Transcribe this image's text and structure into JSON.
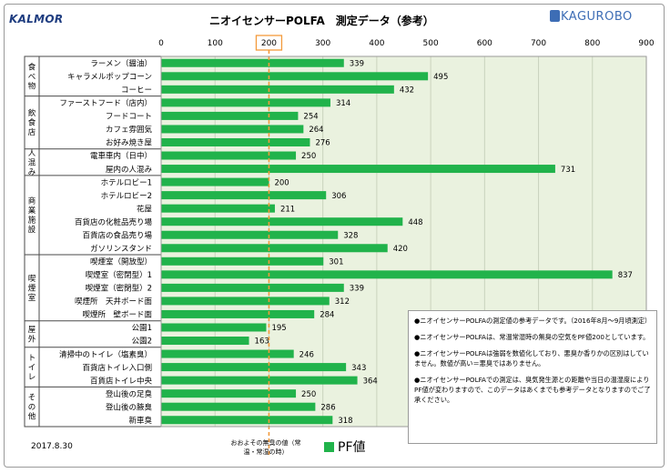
{
  "header": {
    "brand_left": "KALMOR",
    "title": "ニオイセンサーPOLFA　測定データ（参考）",
    "brand_right": "KAGUROBO"
  },
  "footer": {
    "date": "2017.8.30",
    "reference_note": "おおよその無臭の値（常温・常湿の時）",
    "legend_label": "PF値"
  },
  "notes": [
    "●ニオイセンサーPOLFAの測定値の参考データです。（2016年8月〜9月頃測定）",
    "●ニオイセンサーPOLFAは、常温常湿時の無臭の空気をPF値200としています。",
    "●ニオイセンサーPOLFAは強弱を数値化しており、悪臭か香りかの区別はしていません。数値が高い＝悪臭ではありません。",
    "●ニオイセンサーPOLFAでの測定は、臭気発生源との距離や当日の温湿度によりPF値が変わりますので、このデータはあくまでも参考データとなりますのでご了承ください。"
  ],
  "colors": {
    "bar": "#21b34b",
    "reference_line": "#f39a3b",
    "plot_bg": "#eaf2df",
    "grid": "#c9d3bd"
  },
  "chart_data": {
    "type": "bar",
    "orientation": "horizontal",
    "title": "ニオイセンサーPOLFA　測定データ（参考）",
    "xlim": [
      0,
      900
    ],
    "xticks": [
      0,
      100,
      200,
      300,
      400,
      500,
      600,
      700,
      800,
      900
    ],
    "reference_value": 200,
    "series": [
      {
        "name": "PF値"
      }
    ],
    "groups": [
      {
        "name": "食べ物",
        "items": [
          {
            "label": "ラーメン（醤油）",
            "value": 339
          },
          {
            "label": "キャラメルポップコーン",
            "value": 495
          },
          {
            "label": "コーヒー",
            "value": 432
          }
        ]
      },
      {
        "name": "飲食店",
        "items": [
          {
            "label": "ファーストフード（店内）",
            "value": 314
          },
          {
            "label": "フードコート",
            "value": 254
          },
          {
            "label": "カフェ雰囲気",
            "value": 264
          },
          {
            "label": "お好み焼き屋",
            "value": 276
          }
        ]
      },
      {
        "name": "人混み",
        "items": [
          {
            "label": "電車車内（日中）",
            "value": 250
          },
          {
            "label": "屋内の人混み",
            "value": 731
          }
        ]
      },
      {
        "name": "商業施設",
        "items": [
          {
            "label": "ホテルロビー1",
            "value": 200
          },
          {
            "label": "ホテルロビー2",
            "value": 306
          },
          {
            "label": "花屋",
            "value": 211
          },
          {
            "label": "百貨店の化粧品売り場",
            "value": 448
          },
          {
            "label": "百貨店の食品売り場",
            "value": 328
          },
          {
            "label": "ガソリンスタンド",
            "value": 420
          }
        ]
      },
      {
        "name": "喫煙室",
        "items": [
          {
            "label": "喫煙室（開放型）",
            "value": 301
          },
          {
            "label": "喫煙室（密閉型）1",
            "value": 837
          },
          {
            "label": "喫煙室（密閉型）2",
            "value": 339
          },
          {
            "label": "喫煙所　天井ボード面",
            "value": 312
          },
          {
            "label": "喫煙所　壁ボード面",
            "value": 284
          }
        ]
      },
      {
        "name": "屋外",
        "items": [
          {
            "label": "公園1",
            "value": 195
          },
          {
            "label": "公園2",
            "value": 163
          }
        ]
      },
      {
        "name": "トイレ",
        "items": [
          {
            "label": "清掃中のトイレ（塩素臭）",
            "value": 246
          },
          {
            "label": "百貨店トイレ入口側",
            "value": 343
          },
          {
            "label": "百貨店トイレ中央",
            "value": 364
          }
        ]
      },
      {
        "name": "その他",
        "items": [
          {
            "label": "登山後の足臭",
            "value": 250
          },
          {
            "label": "登山後の腋臭",
            "value": 286
          },
          {
            "label": "新車臭",
            "value": 318
          }
        ]
      }
    ]
  }
}
